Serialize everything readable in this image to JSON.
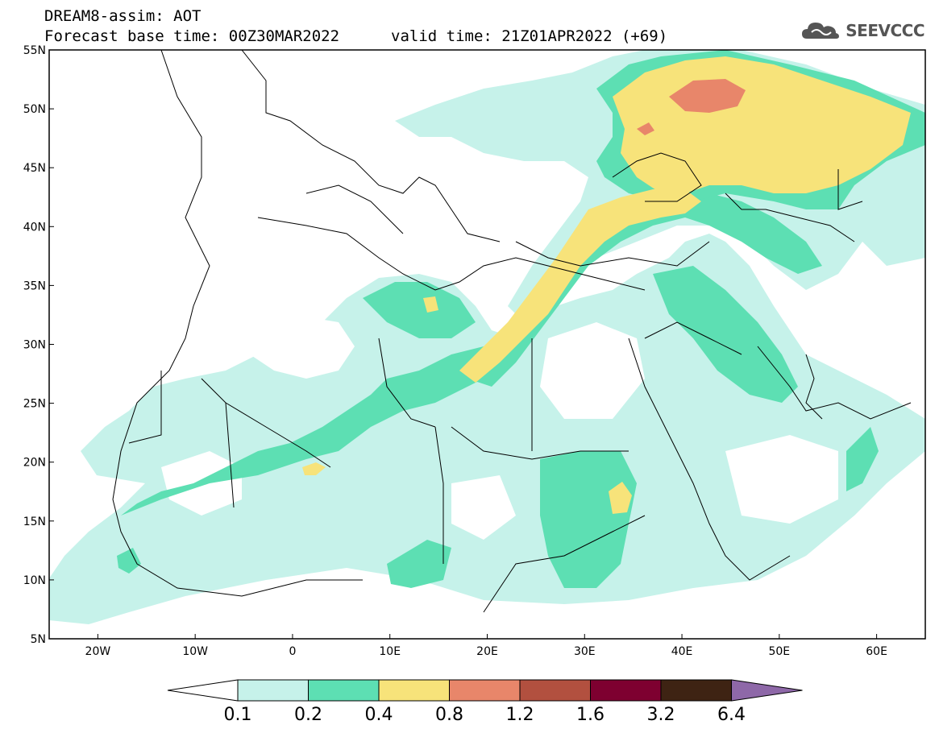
{
  "header": {
    "line1": "DREAM8-assim: AOT",
    "line2_left": "Forecast base time: 00Z30MAR2022",
    "line2_right": "valid time: 21Z01APR2022 (+69)",
    "logo_text": "SEEVCCC",
    "logo_icon": "cloud-logo-icon"
  },
  "map": {
    "lon_range": [
      -25,
      65
    ],
    "lat_range": [
      5,
      55
    ],
    "lat_labels": [
      "55N",
      "50N",
      "45N",
      "40N",
      "35N",
      "30N",
      "25N",
      "20N",
      "15N",
      "10N",
      "5N"
    ],
    "lat_values": [
      55,
      50,
      45,
      40,
      35,
      30,
      25,
      20,
      15,
      10,
      5
    ],
    "lon_labels": [
      "20W",
      "10W",
      "0",
      "10E",
      "20E",
      "30E",
      "40E",
      "50E",
      "60E"
    ],
    "lon_values": [
      -20,
      -10,
      0,
      10,
      20,
      30,
      40,
      50,
      60
    ]
  },
  "colorbar": {
    "levels": [
      "0.1",
      "0.2",
      "0.4",
      "0.8",
      "1.2",
      "1.6",
      "3.2",
      "6.4"
    ],
    "colors": [
      "#ffffff",
      "#c6f2ea",
      "#5ddfb3",
      "#f7e37a",
      "#e8866a",
      "#b2503f",
      "#7e0030",
      "#3e2313",
      "#8e68a8"
    ]
  },
  "colors": {
    "aot_0_1": "#c6f2ea",
    "aot_0_2": "#5ddfb3",
    "aot_0_4": "#f7e37a",
    "aot_0_8": "#e8866a",
    "aot_1_2": "#b2503f"
  }
}
